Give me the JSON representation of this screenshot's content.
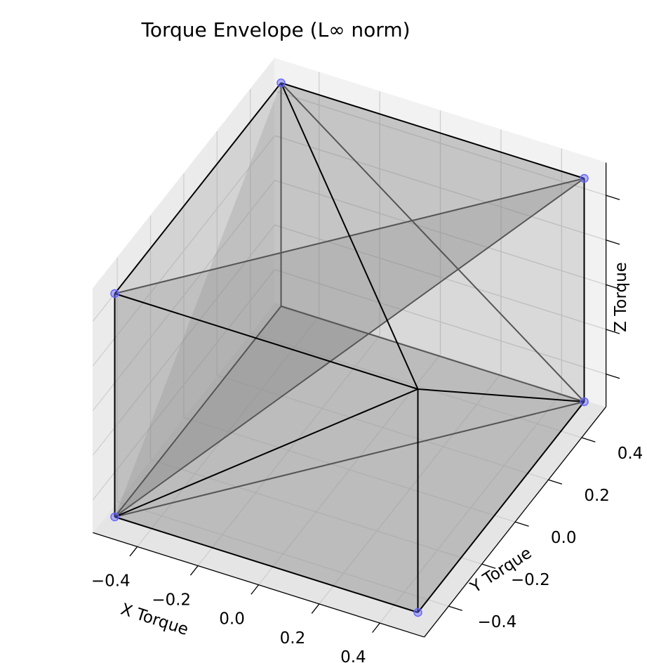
{
  "chart_data": {
    "type": "3d-hull",
    "title": "Torque Envelope (L∞ norm)",
    "xlabel": "X Torque",
    "ylabel": "Y Torque",
    "zlabel": "Z Torque",
    "xlim": [
      -0.5,
      0.5
    ],
    "ylim": [
      -0.5,
      0.5
    ],
    "zlim": [
      -0.5,
      0.5
    ],
    "ticks": [
      -0.4,
      -0.2,
      0.0,
      0.2,
      0.4
    ],
    "tick_labels": [
      "−0.4",
      "−0.2",
      "0.0",
      "0.2",
      "0.4"
    ],
    "grid": true,
    "face_color": "#808080",
    "edge_color": "#000000",
    "point_color": "#6666ff",
    "points": [
      {
        "x": -0.5,
        "y": -0.5,
        "z": -0.5
      },
      {
        "x": 0.5,
        "y": -0.5,
        "z": -0.5
      },
      {
        "x": 0.5,
        "y": 0.5,
        "z": -0.5
      },
      {
        "x": -0.5,
        "y": -0.5,
        "z": 0.5
      },
      {
        "x": -0.5,
        "y": 0.5,
        "z": 0.5
      },
      {
        "x": 0.5,
        "y": 0.5,
        "z": 0.5
      }
    ],
    "faces": [
      [
        [
          -0.5,
          -0.5,
          0.5
        ],
        [
          0.5,
          -0.5,
          0.5
        ],
        [
          0.5,
          0.5,
          0.5
        ]
      ],
      [
        [
          -0.5,
          -0.5,
          0.5
        ],
        [
          0.5,
          0.5,
          0.5
        ],
        [
          -0.5,
          0.5,
          0.5
        ]
      ],
      [
        [
          -0.5,
          -0.5,
          -0.5
        ],
        [
          0.5,
          -0.5,
          -0.5
        ],
        [
          0.5,
          0.5,
          -0.5
        ]
      ],
      [
        [
          -0.5,
          -0.5,
          -0.5
        ],
        [
          0.5,
          0.5,
          -0.5
        ],
        [
          -0.5,
          0.5,
          -0.5
        ]
      ],
      [
        [
          -0.5,
          -0.5,
          -0.5
        ],
        [
          0.5,
          -0.5,
          -0.5
        ],
        [
          0.5,
          -0.5,
          0.5
        ]
      ],
      [
        [
          -0.5,
          -0.5,
          -0.5
        ],
        [
          0.5,
          -0.5,
          0.5
        ],
        [
          -0.5,
          -0.5,
          0.5
        ]
      ],
      [
        [
          0.5,
          -0.5,
          -0.5
        ],
        [
          0.5,
          0.5,
          -0.5
        ],
        [
          0.5,
          0.5,
          0.5
        ]
      ],
      [
        [
          0.5,
          -0.5,
          -0.5
        ],
        [
          0.5,
          0.5,
          0.5
        ],
        [
          0.5,
          -0.5,
          0.5
        ]
      ],
      [
        [
          -0.5,
          -0.5,
          -0.5
        ],
        [
          0.5,
          0.5,
          0.5
        ],
        [
          -0.5,
          0.5,
          0.5
        ]
      ],
      [
        [
          -0.5,
          -0.5,
          -0.5
        ],
        [
          -0.5,
          -0.5,
          0.5
        ],
        [
          0.5,
          0.5,
          0.5
        ]
      ]
    ],
    "edges": [
      [
        [
          -0.5,
          -0.5,
          0.5
        ],
        [
          -0.5,
          -0.5,
          -0.5
        ]
      ],
      [
        [
          -0.5,
          -0.5,
          -0.5
        ],
        [
          0.5,
          -0.5,
          -0.5
        ]
      ],
      [
        [
          0.5,
          -0.5,
          -0.5
        ],
        [
          0.5,
          0.5,
          -0.5
        ]
      ],
      [
        [
          -0.5,
          -0.5,
          0.5
        ],
        [
          0.5,
          -0.5,
          0.5
        ]
      ],
      [
        [
          -0.5,
          0.5,
          0.5
        ],
        [
          0.5,
          -0.5,
          0.5
        ]
      ],
      [
        [
          -0.5,
          -0.5,
          -0.5
        ],
        [
          0.5,
          -0.5,
          0.5
        ]
      ],
      [
        [
          0.5,
          -0.5,
          0.5
        ],
        [
          0.5,
          0.5,
          -0.5
        ]
      ],
      [
        [
          0.5,
          -0.5,
          0.5
        ],
        [
          0.5,
          -0.5,
          -0.5
        ]
      ],
      [
        [
          -0.5,
          0.5,
          0.5
        ],
        [
          0.5,
          0.5,
          0.5
        ]
      ],
      [
        [
          0.5,
          0.5,
          0.5
        ],
        [
          0.5,
          0.5,
          -0.5
        ]
      ],
      [
        [
          -0.5,
          -0.5,
          0.5
        ],
        [
          -0.5,
          0.5,
          0.5
        ]
      ]
    ],
    "back_edges": [
      [
        [
          -0.5,
          0.5,
          0.5
        ],
        [
          -0.5,
          0.5,
          -0.5
        ]
      ],
      [
        [
          -0.5,
          0.5,
          -0.5
        ],
        [
          -0.5,
          -0.5,
          -0.5
        ]
      ],
      [
        [
          -0.5,
          0.5,
          -0.5
        ],
        [
          0.5,
          0.5,
          -0.5
        ]
      ],
      [
        [
          -0.5,
          -0.5,
          0.5
        ],
        [
          0.5,
          0.5,
          0.5
        ]
      ],
      [
        [
          -0.5,
          0.5,
          0.5
        ],
        [
          0.5,
          0.5,
          -0.5
        ]
      ],
      [
        [
          -0.5,
          -0.5,
          -0.5
        ],
        [
          0.5,
          0.5,
          -0.5
        ]
      ],
      [
        [
          -0.5,
          -0.5,
          -0.5
        ],
        [
          0.5,
          0.5,
          0.5
        ]
      ]
    ]
  }
}
